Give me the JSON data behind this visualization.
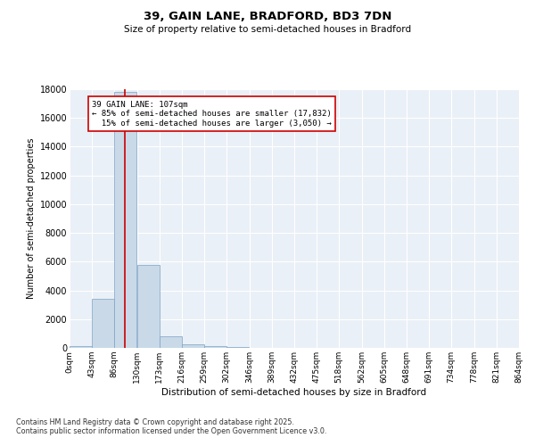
{
  "title1": "39, GAIN LANE, BRADFORD, BD3 7DN",
  "title2": "Size of property relative to semi-detached houses in Bradford",
  "xlabel": "Distribution of semi-detached houses by size in Bradford",
  "ylabel": "Number of semi-detached properties",
  "annotation_text": "39 GAIN LANE: 107sqm\n← 85% of semi-detached houses are smaller (17,832)\n  15% of semi-detached houses are larger (3,050) →",
  "bin_edges": [
    0,
    43,
    86,
    130,
    173,
    216,
    259,
    302,
    346,
    389,
    432,
    475,
    518,
    562,
    605,
    648,
    691,
    734,
    778,
    821,
    864
  ],
  "bin_labels": [
    "0sqm",
    "43sqm",
    "86sqm",
    "130sqm",
    "173sqm",
    "216sqm",
    "259sqm",
    "302sqm",
    "346sqm",
    "389sqm",
    "432sqm",
    "475sqm",
    "518sqm",
    "562sqm",
    "605sqm",
    "648sqm",
    "691sqm",
    "734sqm",
    "778sqm",
    "821sqm",
    "864sqm"
  ],
  "bar_heights": [
    150,
    3400,
    17832,
    5800,
    800,
    250,
    120,
    50,
    10,
    5,
    2,
    1,
    0,
    0,
    0,
    0,
    0,
    0,
    0,
    0
  ],
  "bar_color": "#c9d9e8",
  "bar_edge_color": "#7ba3c4",
  "vline_color": "#cc0000",
  "vline_x": 107,
  "ylim": [
    0,
    18000
  ],
  "yticks": [
    0,
    2000,
    4000,
    6000,
    8000,
    10000,
    12000,
    14000,
    16000,
    18000
  ],
  "background_color": "#eaf0f7",
  "footer1": "Contains HM Land Registry data © Crown copyright and database right 2025.",
  "footer2": "Contains public sector information licensed under the Open Government Licence v3.0."
}
